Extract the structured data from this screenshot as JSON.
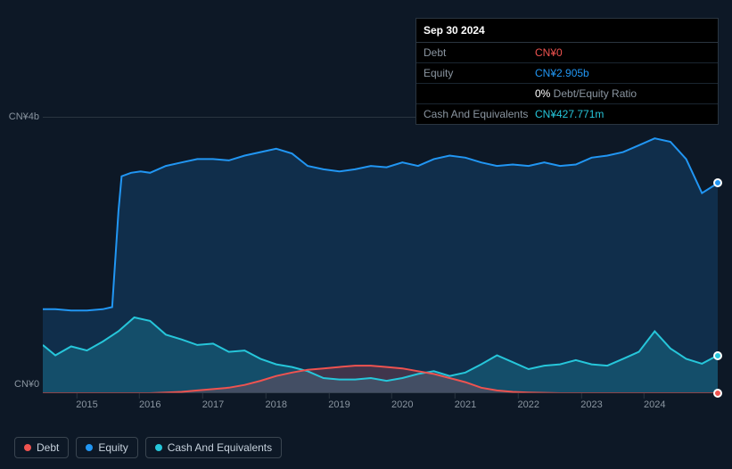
{
  "tooltip": {
    "date": "Sep 30 2024",
    "rows": [
      {
        "label": "Debt",
        "value": "CN¥0",
        "cls": "debt"
      },
      {
        "label": "Equity",
        "value": "CN¥2.905b",
        "cls": "equity"
      },
      {
        "label": "",
        "value": "0%",
        "suffix": " Debt/Equity Ratio",
        "cls": "ratio"
      },
      {
        "label": "Cash And Equivalents",
        "value": "CN¥427.771m",
        "cls": "cash"
      }
    ]
  },
  "chart": {
    "type": "area",
    "background_color": "#0d1826",
    "grid_color": "#2a3540",
    "label_color": "#8a95a0",
    "label_fontsize": 11,
    "ylim": [
      0,
      4
    ],
    "y_ticks": [
      {
        "v": 4,
        "label": "CN¥4b"
      },
      {
        "v": 0,
        "label": "CN¥0"
      }
    ],
    "x_range": [
      2014.3,
      2025.0
    ],
    "x_ticks": [
      2015,
      2016,
      2017,
      2018,
      2019,
      2020,
      2021,
      2022,
      2023,
      2024
    ],
    "series": {
      "equity": {
        "color": "#2196f3",
        "fill": "rgba(33,150,243,0.18)",
        "line_width": 2,
        "data": [
          [
            2014.3,
            1.22
          ],
          [
            2014.5,
            1.22
          ],
          [
            2014.75,
            1.2
          ],
          [
            2015.0,
            1.2
          ],
          [
            2015.25,
            1.22
          ],
          [
            2015.4,
            1.25
          ],
          [
            2015.5,
            2.65
          ],
          [
            2015.55,
            3.15
          ],
          [
            2015.7,
            3.2
          ],
          [
            2015.85,
            3.22
          ],
          [
            2016.0,
            3.2
          ],
          [
            2016.25,
            3.3
          ],
          [
            2016.5,
            3.35
          ],
          [
            2016.75,
            3.4
          ],
          [
            2017.0,
            3.4
          ],
          [
            2017.25,
            3.38
          ],
          [
            2017.5,
            3.45
          ],
          [
            2017.75,
            3.5
          ],
          [
            2018.0,
            3.55
          ],
          [
            2018.25,
            3.48
          ],
          [
            2018.5,
            3.3
          ],
          [
            2018.75,
            3.25
          ],
          [
            2019.0,
            3.22
          ],
          [
            2019.25,
            3.25
          ],
          [
            2019.5,
            3.3
          ],
          [
            2019.75,
            3.28
          ],
          [
            2020.0,
            3.35
          ],
          [
            2020.25,
            3.3
          ],
          [
            2020.5,
            3.4
          ],
          [
            2020.75,
            3.45
          ],
          [
            2021.0,
            3.42
          ],
          [
            2021.25,
            3.35
          ],
          [
            2021.5,
            3.3
          ],
          [
            2021.75,
            3.32
          ],
          [
            2022.0,
            3.3
          ],
          [
            2022.25,
            3.35
          ],
          [
            2022.5,
            3.3
          ],
          [
            2022.75,
            3.32
          ],
          [
            2023.0,
            3.42
          ],
          [
            2023.25,
            3.45
          ],
          [
            2023.5,
            3.5
          ],
          [
            2023.75,
            3.6
          ],
          [
            2024.0,
            3.7
          ],
          [
            2024.25,
            3.65
          ],
          [
            2024.5,
            3.4
          ],
          [
            2024.75,
            2.905
          ],
          [
            2025.0,
            3.05
          ]
        ]
      },
      "cash": {
        "color": "#26c6da",
        "fill": "rgba(38,198,218,0.22)",
        "line_width": 2,
        "data": [
          [
            2014.3,
            0.7
          ],
          [
            2014.5,
            0.55
          ],
          [
            2014.75,
            0.68
          ],
          [
            2015.0,
            0.62
          ],
          [
            2015.25,
            0.75
          ],
          [
            2015.5,
            0.9
          ],
          [
            2015.75,
            1.1
          ],
          [
            2016.0,
            1.05
          ],
          [
            2016.25,
            0.85
          ],
          [
            2016.5,
            0.78
          ],
          [
            2016.75,
            0.7
          ],
          [
            2017.0,
            0.72
          ],
          [
            2017.25,
            0.6
          ],
          [
            2017.5,
            0.62
          ],
          [
            2017.75,
            0.5
          ],
          [
            2018.0,
            0.42
          ],
          [
            2018.25,
            0.38
          ],
          [
            2018.5,
            0.32
          ],
          [
            2018.75,
            0.22
          ],
          [
            2019.0,
            0.2
          ],
          [
            2019.25,
            0.2
          ],
          [
            2019.5,
            0.22
          ],
          [
            2019.75,
            0.18
          ],
          [
            2020.0,
            0.22
          ],
          [
            2020.25,
            0.28
          ],
          [
            2020.5,
            0.32
          ],
          [
            2020.75,
            0.25
          ],
          [
            2021.0,
            0.3
          ],
          [
            2021.25,
            0.42
          ],
          [
            2021.5,
            0.55
          ],
          [
            2021.75,
            0.45
          ],
          [
            2022.0,
            0.35
          ],
          [
            2022.25,
            0.4
          ],
          [
            2022.5,
            0.42
          ],
          [
            2022.75,
            0.48
          ],
          [
            2023.0,
            0.42
          ],
          [
            2023.25,
            0.4
          ],
          [
            2023.5,
            0.5
          ],
          [
            2023.75,
            0.6
          ],
          [
            2024.0,
            0.9
          ],
          [
            2024.25,
            0.65
          ],
          [
            2024.5,
            0.5
          ],
          [
            2024.75,
            0.428
          ],
          [
            2025.0,
            0.55
          ]
        ]
      },
      "debt": {
        "color": "#ef5350",
        "fill": "rgba(239,83,80,0.22)",
        "line_width": 2,
        "data": [
          [
            2014.3,
            0.0
          ],
          [
            2015.0,
            0.0
          ],
          [
            2015.5,
            0.0
          ],
          [
            2016.0,
            0.0
          ],
          [
            2016.5,
            0.02
          ],
          [
            2016.75,
            0.04
          ],
          [
            2017.0,
            0.06
          ],
          [
            2017.25,
            0.08
          ],
          [
            2017.5,
            0.12
          ],
          [
            2017.75,
            0.18
          ],
          [
            2018.0,
            0.25
          ],
          [
            2018.25,
            0.3
          ],
          [
            2018.5,
            0.34
          ],
          [
            2018.75,
            0.36
          ],
          [
            2019.0,
            0.38
          ],
          [
            2019.25,
            0.4
          ],
          [
            2019.5,
            0.4
          ],
          [
            2019.75,
            0.38
          ],
          [
            2020.0,
            0.36
          ],
          [
            2020.25,
            0.32
          ],
          [
            2020.5,
            0.28
          ],
          [
            2020.75,
            0.22
          ],
          [
            2021.0,
            0.16
          ],
          [
            2021.25,
            0.08
          ],
          [
            2021.5,
            0.04
          ],
          [
            2021.75,
            0.02
          ],
          [
            2022.0,
            0.01
          ],
          [
            2022.5,
            0.0
          ],
          [
            2023.0,
            0.0
          ],
          [
            2023.5,
            0.0
          ],
          [
            2024.0,
            0.0
          ],
          [
            2024.5,
            0.0
          ],
          [
            2024.75,
            0.0
          ],
          [
            2025.0,
            0.0
          ]
        ]
      }
    },
    "markers": [
      {
        "series": "equity",
        "x": 2025.0,
        "y": 3.05
      },
      {
        "series": "cash",
        "x": 2025.0,
        "y": 0.55
      },
      {
        "series": "debt",
        "x": 2025.0,
        "y": 0.0
      }
    ]
  },
  "legend": [
    {
      "label": "Debt",
      "color": "#ef5350",
      "key": "debt"
    },
    {
      "label": "Equity",
      "color": "#2196f3",
      "key": "equity"
    },
    {
      "label": "Cash And Equivalents",
      "color": "#26c6da",
      "key": "cash"
    }
  ]
}
